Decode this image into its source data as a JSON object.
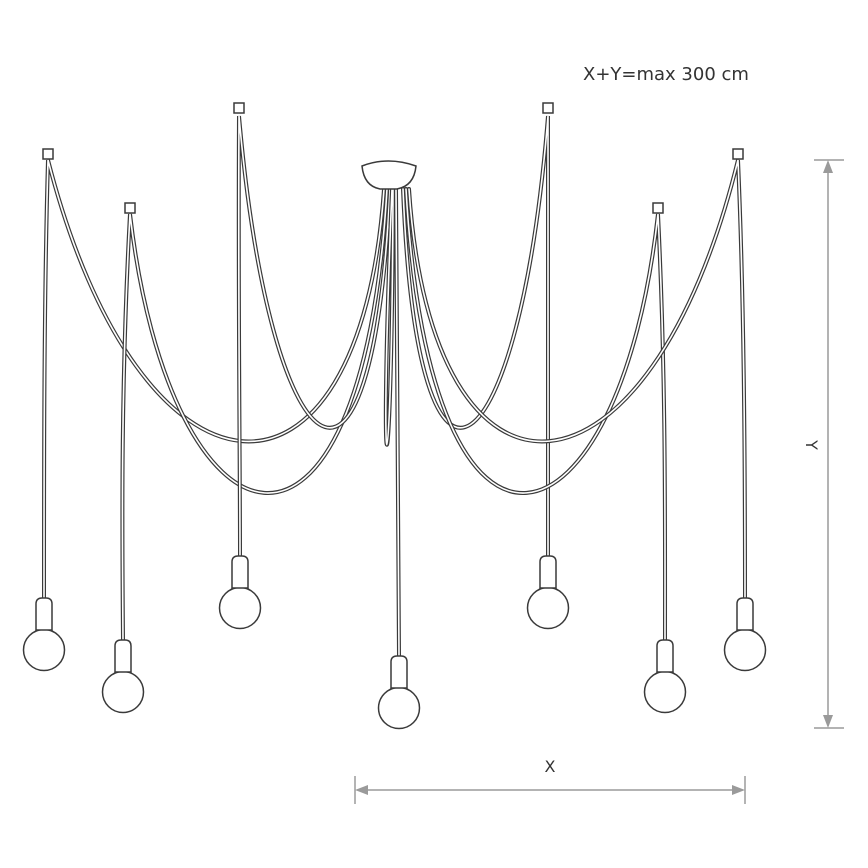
{
  "note": "X+Y=max 300 cm",
  "dimensions": {
    "x_label": "X",
    "y_label": "Y"
  },
  "colors": {
    "line": "#3a3a3a",
    "dimension": "#9a9a9a"
  },
  "pendant_count": 7,
  "ceiling_hook_count": 6
}
